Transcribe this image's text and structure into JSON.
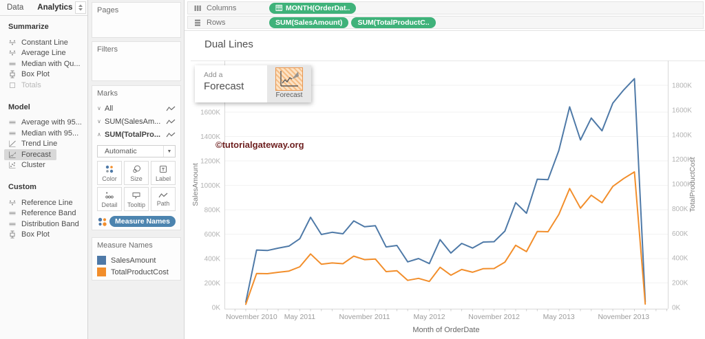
{
  "left_pane": {
    "tabs": [
      {
        "label": "Data",
        "active": false
      },
      {
        "label": "Analytics",
        "active": true
      }
    ],
    "toggle_icon": "updown-arrows-icon",
    "sections": [
      {
        "title": "Summarize",
        "items": [
          {
            "label": "Constant Line",
            "icon": "constant-line-icon"
          },
          {
            "label": "Average Line",
            "icon": "average-line-icon"
          },
          {
            "label": "Median with Qu...",
            "icon": "median-quartiles-icon"
          },
          {
            "label": "Box Plot",
            "icon": "box-plot-icon"
          },
          {
            "label": "Totals",
            "icon": "totals-icon",
            "disabled": true
          }
        ]
      },
      {
        "title": "Model",
        "items": [
          {
            "label": "Average with 95...",
            "icon": "average-ci-icon"
          },
          {
            "label": "Median with 95...",
            "icon": "median-ci-icon"
          },
          {
            "label": "Trend Line",
            "icon": "trend-line-icon"
          },
          {
            "label": "Forecast",
            "icon": "forecast-icon",
            "selected": true
          },
          {
            "label": "Cluster",
            "icon": "cluster-icon"
          }
        ]
      },
      {
        "title": "Custom",
        "items": [
          {
            "label": "Reference Line",
            "icon": "reference-line-icon"
          },
          {
            "label": "Reference Band",
            "icon": "reference-band-icon"
          },
          {
            "label": "Distribution Band",
            "icon": "distribution-band-icon"
          },
          {
            "label": "Box Plot",
            "icon": "box-plot-icon"
          }
        ]
      }
    ]
  },
  "cards": {
    "pages": {
      "title": "Pages"
    },
    "filters": {
      "title": "Filters"
    },
    "marks": {
      "title": "Marks",
      "rows": [
        {
          "label": "All",
          "chevron": "down",
          "bold": false,
          "mark_icon": "line-mark-icon"
        },
        {
          "label": "SUM(SalesAm...",
          "chevron": "down",
          "bold": false,
          "mark_icon": "line-mark-icon"
        },
        {
          "label": "SUM(TotalPro...",
          "chevron": "up",
          "bold": true,
          "mark_icon": "line-mark-icon"
        }
      ],
      "mark_type_dropdown": {
        "value": "Automatic",
        "icon": "line-mark-icon"
      },
      "buttons": [
        {
          "label": "Color",
          "icon": "color-icon"
        },
        {
          "label": "Size",
          "icon": "size-icon"
        },
        {
          "label": "Label",
          "icon": "label-icon"
        },
        {
          "label": "Detail",
          "icon": "detail-icon"
        },
        {
          "label": "Tooltip",
          "icon": "tooltip-icon"
        },
        {
          "label": "Path",
          "icon": "path-icon"
        }
      ],
      "shelf_pill": {
        "label": "Measure Names",
        "color": "#4c84af",
        "legend_icon": "color-legend-icon"
      }
    },
    "legend": {
      "title": "Measure Names",
      "entries": [
        {
          "label": "SalesAmount",
          "color": "#4e79a7"
        },
        {
          "label": "TotalProductCost",
          "color": "#f28e2b"
        }
      ]
    }
  },
  "shelves": {
    "columns": {
      "label": "Columns",
      "icon": "columns-icon",
      "pills": [
        {
          "label": "MONTH(OrderDat..",
          "icon": "date-grid-icon",
          "color": "#3fb27a"
        }
      ]
    },
    "rows": {
      "label": "Rows",
      "icon": "rows-icon",
      "pills": [
        {
          "label": "SUM(SalesAmount)",
          "color": "#3fb27a"
        },
        {
          "label": "SUM(TotalProductC..",
          "color": "#3fb27a"
        }
      ]
    }
  },
  "sheet": {
    "title": "Dual Lines",
    "watermark": "©tutorialgateway.org",
    "watermark_color": "#6e2020"
  },
  "drag_tooltip": {
    "line1": "Add a",
    "line2": "Forecast",
    "icon": "forecast-icon",
    "icon_caption": "Forecast"
  },
  "chart_data": {
    "type": "line",
    "title": "Dual Lines",
    "xlabel": "Month of OrderDate",
    "grid": true,
    "months": [
      "2010-12",
      "2011-01",
      "2011-02",
      "2011-03",
      "2011-04",
      "2011-05",
      "2011-06",
      "2011-07",
      "2011-08",
      "2011-09",
      "2011-10",
      "2011-11",
      "2011-12",
      "2012-01",
      "2012-02",
      "2012-03",
      "2012-04",
      "2012-05",
      "2012-06",
      "2012-07",
      "2012-08",
      "2012-09",
      "2012-10",
      "2012-11",
      "2012-12",
      "2013-01",
      "2013-02",
      "2013-03",
      "2013-04",
      "2013-05",
      "2013-06",
      "2013-07",
      "2013-08",
      "2013-09",
      "2013-10",
      "2013-11",
      "2013-12",
      "2014-01"
    ],
    "x_ticks": [
      {
        "label": "November 2010",
        "month_index": -1
      },
      {
        "label": "May 2011",
        "month_index": 5
      },
      {
        "label": "November 2011",
        "month_index": 11
      },
      {
        "label": "May 2012",
        "month_index": 17
      },
      {
        "label": "November 2012",
        "month_index": 23
      },
      {
        "label": "May 2013",
        "month_index": 29
      },
      {
        "label": "November 2013",
        "month_index": 35
      }
    ],
    "left_axis": {
      "title": "SalesAmount",
      "ticks": [
        "0K",
        "200K",
        "400K",
        "600K",
        "800K",
        "1000K",
        "1200K",
        "1400K",
        "1600K"
      ],
      "ylim_k": [
        0,
        1700
      ]
    },
    "right_axis": {
      "title": "TotalProductCost",
      "ticks": [
        "0K",
        "200K",
        "400K",
        "600K",
        "800K",
        "1000K",
        "1200K",
        "1400K",
        "1600K",
        "1800K"
      ],
      "ylim_k": [
        0,
        1960
      ]
    },
    "series": [
      {
        "name": "SalesAmount",
        "color": "#4e79a7",
        "axis": "left",
        "values_k": [
          43,
          470,
          466,
          485,
          502,
          562,
          738,
          597,
          615,
          603,
          708,
          661,
          669,
          495,
          507,
          373,
          400,
          359,
          555,
          445,
          524,
          486,
          535,
          538,
          625,
          858,
          771,
          1050,
          1046,
          1285,
          1643,
          1372,
          1551,
          1447,
          1673,
          1781,
          1874,
          46
        ]
      },
      {
        "name": "TotalProductCost",
        "color": "#f28e2b",
        "axis": "right",
        "values_k": [
          25,
          275,
          273,
          284,
          294,
          329,
          433,
          350,
          360,
          354,
          415,
          387,
          392,
          290,
          297,
          219,
          235,
          210,
          325,
          261,
          307,
          285,
          314,
          315,
          366,
          503,
          452,
          615,
          613,
          753,
          963,
          804,
          909,
          848,
          980,
          1044,
          1098,
          27
        ]
      }
    ]
  }
}
